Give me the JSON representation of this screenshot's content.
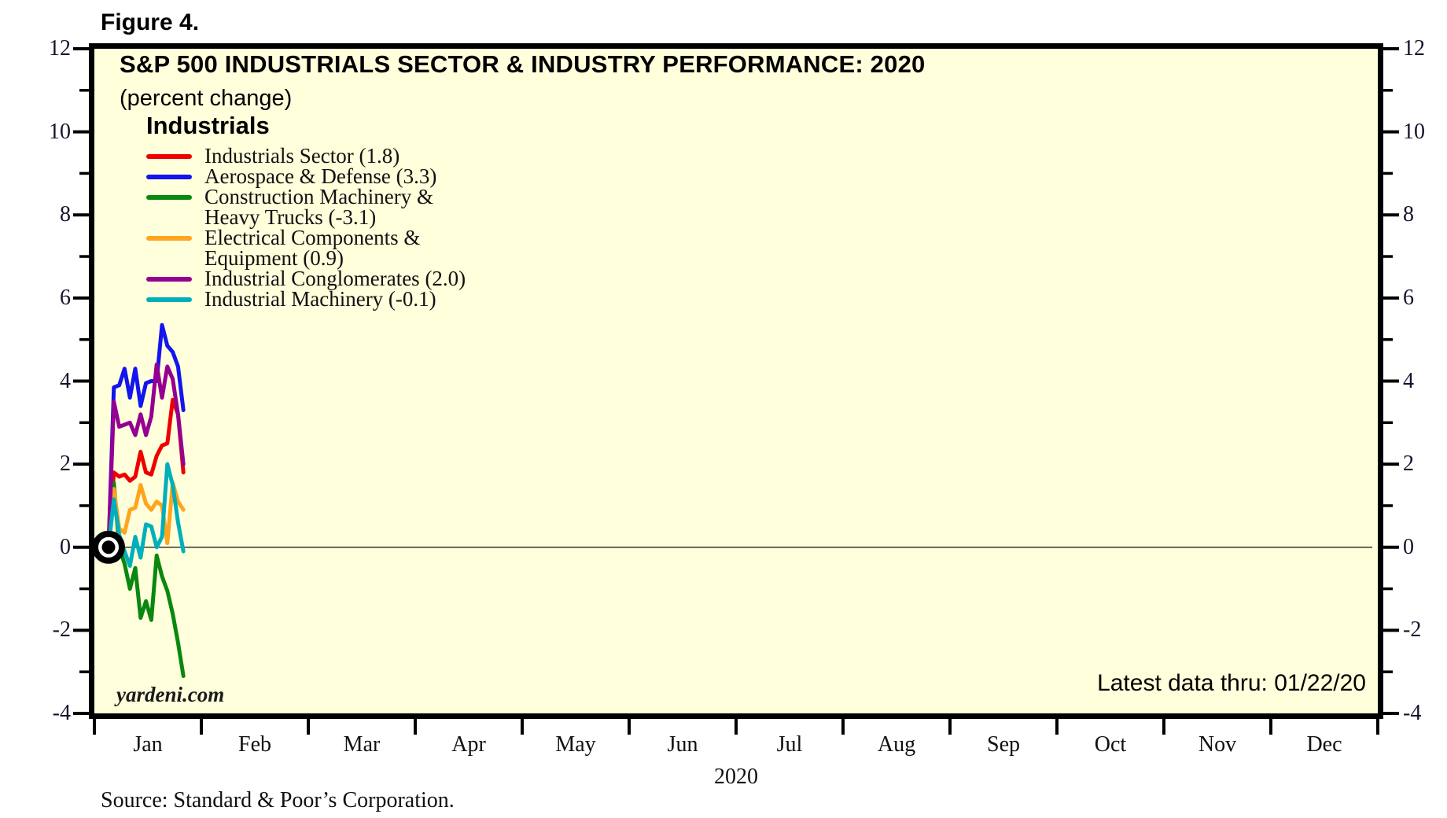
{
  "figure_label": "Figure 4.",
  "header": {
    "title": "S&P 500 INDUSTRIALS SECTOR & INDUSTRY PERFORMANCE: 2020",
    "subtitle": "(percent change)"
  },
  "legend": {
    "group_title": "Industrials",
    "items": [
      {
        "name": "Industrials Sector",
        "lines": [
          "Industrials Sector (1.8)"
        ],
        "color": "#EE0000"
      },
      {
        "name": "Aerospace & Defense",
        "lines": [
          "Aerospace & Defense (3.3)"
        ],
        "color": "#1414F0"
      },
      {
        "name": "Construction Machinery & Heavy Trucks",
        "lines": [
          "Construction Machinery &",
          "Heavy Trucks (-3.1)"
        ],
        "color": "#0A870F"
      },
      {
        "name": "Electrical Components & Equipment",
        "lines": [
          "Electrical Components &",
          "Equipment (0.9)"
        ],
        "color": "#FFA41E"
      },
      {
        "name": "Industrial Conglomerates",
        "lines": [
          "Industrial Conglomerates (2.0)"
        ],
        "color": "#940092"
      },
      {
        "name": "Industrial Machinery",
        "lines": [
          "Industrial Machinery (-0.1)"
        ],
        "color": "#00AFBC"
      }
    ]
  },
  "y_axis": {
    "major_labels": [
      "12",
      "10",
      "8",
      "6",
      "4",
      "2",
      "0",
      "-2",
      "-4"
    ],
    "major_values": [
      12,
      10,
      8,
      6,
      4,
      2,
      0,
      -2,
      -4
    ],
    "minor_values": [
      11,
      9,
      7,
      5,
      3,
      1,
      -1,
      -3
    ]
  },
  "x_axis": {
    "months": [
      "Jan",
      "Feb",
      "Mar",
      "Apr",
      "May",
      "Jun",
      "Jul",
      "Aug",
      "Sep",
      "Oct",
      "Nov",
      "Dec"
    ],
    "year": "2020"
  },
  "annotations": {
    "watermark": "yardeni.com",
    "latest_data": "Latest data thru: 01/22/20"
  },
  "source": "Source: Standard & Poor’s Corporation.",
  "colors": {
    "plot_background": "#FFFFDC",
    "frame": "#000000",
    "zero_line": "#333333"
  },
  "chart_data": {
    "type": "line",
    "title": "S&P 500 INDUSTRIALS SECTOR & INDUSTRY PERFORMANCE: 2020",
    "ylabel": "percent change",
    "ylim": [
      -4,
      12
    ],
    "y_major_step": 2,
    "grid": "zero-line only",
    "legend_position": "top-left inside plot",
    "x_note": "Daily percent change since start of 2020; data plotted from 12/31 baseline (0) through 01/22/20; x-axis spans Jan-Dec 2020",
    "x": [
      0,
      1,
      2,
      3,
      4,
      5,
      6,
      7,
      8,
      9,
      10,
      11,
      12,
      13,
      14
    ],
    "series": [
      {
        "name": "Industrials Sector",
        "final": 1.8,
        "color": "#EE0000",
        "values": [
          0,
          1.8,
          1.7,
          1.75,
          1.6,
          1.7,
          2.3,
          1.8,
          1.75,
          2.2,
          2.45,
          2.5,
          3.55,
          3.2,
          1.8
        ]
      },
      {
        "name": "Aerospace & Defense",
        "final": 3.3,
        "color": "#1414F0",
        "values": [
          0,
          3.85,
          3.9,
          4.3,
          3.6,
          4.3,
          3.4,
          3.95,
          4.0,
          4.0,
          5.35,
          4.85,
          4.7,
          4.35,
          3.3
        ]
      },
      {
        "name": "Construction Machinery & Heavy Trucks",
        "final": -3.1,
        "color": "#0A870F",
        "values": [
          0,
          1.55,
          0.0,
          -0.4,
          -1.0,
          -0.5,
          -1.7,
          -1.3,
          -1.75,
          -0.2,
          -0.7,
          -1.05,
          -1.6,
          -2.3,
          -3.1
        ]
      },
      {
        "name": "Electrical Components & Equipment",
        "final": 0.9,
        "color": "#FFA41E",
        "values": [
          0,
          1.4,
          0.45,
          0.35,
          0.9,
          0.95,
          1.5,
          1.05,
          0.9,
          1.1,
          1.0,
          0.1,
          1.55,
          1.1,
          0.9
        ]
      },
      {
        "name": "Industrial Conglomerates",
        "final": 2.0,
        "color": "#940092",
        "values": [
          0,
          3.5,
          2.9,
          2.95,
          3.0,
          2.7,
          3.2,
          2.7,
          3.15,
          4.4,
          3.6,
          4.35,
          4.05,
          3.2,
          2.0
        ]
      },
      {
        "name": "Industrial Machinery",
        "final": -0.1,
        "color": "#00AFBC",
        "values": [
          0,
          1.15,
          0.3,
          -0.1,
          -0.45,
          0.25,
          -0.25,
          0.55,
          0.5,
          0.0,
          0.25,
          2.0,
          1.5,
          0.6,
          -0.1
        ]
      }
    ]
  }
}
